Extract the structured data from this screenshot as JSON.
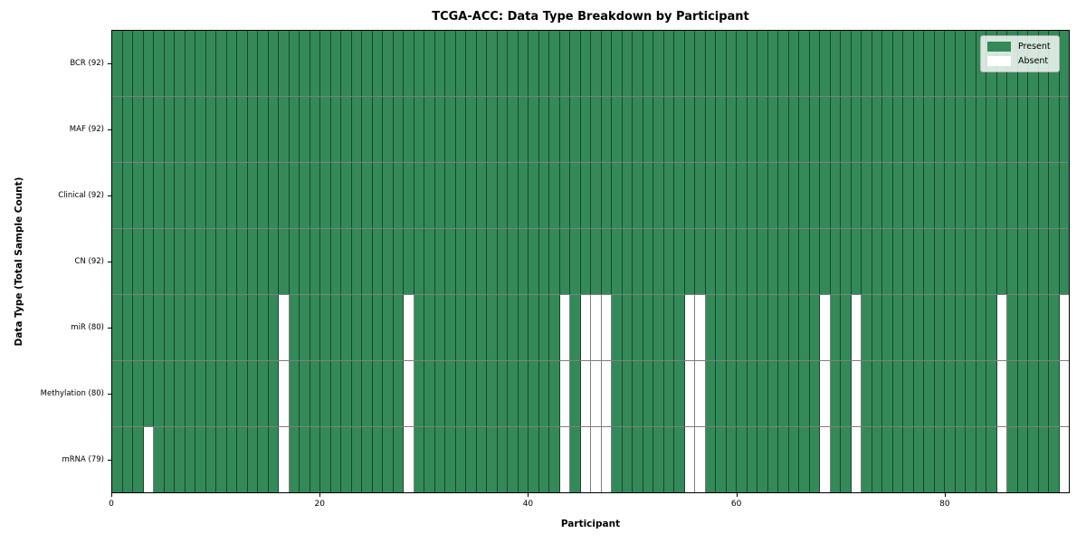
{
  "title": "TCGA-ACC: Data Type Breakdown by Participant",
  "axes": {
    "xlabel": "Participant",
    "ylabel": "Data Type (Total Sample Count)",
    "x_tick_labels": [
      "0",
      "20",
      "40",
      "60",
      "80"
    ],
    "x_tick_values": [
      0,
      20,
      40,
      60,
      80
    ],
    "x_range": [
      0,
      92
    ]
  },
  "legend": {
    "position": "upper right",
    "entries": [
      {
        "label": "Present",
        "color": "#338a58"
      },
      {
        "label": "Absent",
        "color": "#ffffff"
      }
    ]
  },
  "chart_data": {
    "type": "heatmap",
    "n_participants": 92,
    "value_encoding": {
      "present": 1,
      "absent": 0
    },
    "colors": {
      "present": "#338a58",
      "absent": "#ffffff"
    },
    "rows": [
      {
        "label": "BCR (92)",
        "data_type": "BCR",
        "present_count": 92,
        "absent_participants": []
      },
      {
        "label": "MAF (92)",
        "data_type": "MAF",
        "present_count": 92,
        "absent_participants": []
      },
      {
        "label": "Clinical (92)",
        "data_type": "Clinical",
        "present_count": 92,
        "absent_participants": []
      },
      {
        "label": "CN (92)",
        "data_type": "CN",
        "present_count": 92,
        "absent_participants": []
      },
      {
        "label": "miR (80)",
        "data_type": "miR",
        "present_count": 80,
        "absent_participants": [
          16,
          28,
          43,
          45,
          46,
          47,
          55,
          56,
          68,
          71,
          85,
          91
        ]
      },
      {
        "label": "Methylation (80)",
        "data_type": "Methylation",
        "present_count": 80,
        "absent_participants": [
          16,
          28,
          43,
          45,
          46,
          47,
          55,
          56,
          68,
          71,
          85,
          91
        ]
      },
      {
        "label": "mRNA (79)",
        "data_type": "mRNA",
        "present_count": 79,
        "absent_participants": [
          3,
          16,
          28,
          43,
          45,
          46,
          47,
          55,
          56,
          68,
          71,
          85,
          91
        ]
      }
    ]
  }
}
